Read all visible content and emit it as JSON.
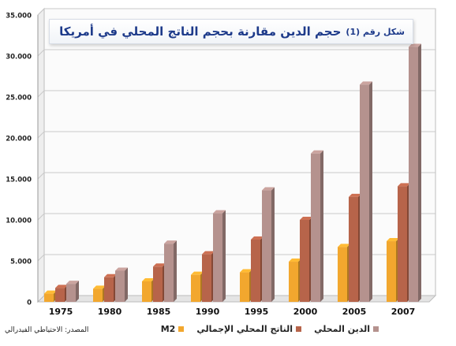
{
  "chart_data": {
    "type": "bar",
    "title_prefix": "شكل رقم (1)",
    "title": "حجم الدين مقارنة بحجم الناتج المحلي في أمريكا",
    "categories": [
      "1975",
      "1980",
      "1985",
      "1990",
      "1995",
      "2000",
      "2005",
      "2007"
    ],
    "series": [
      {
        "name": "M2",
        "color": "#f2a72e",
        "values": [
          1000,
          1600,
          2500,
          3300,
          3600,
          4900,
          6700,
          7400
        ]
      },
      {
        "name": "الناتج المحلي الإجمالي",
        "color": "#b7644a",
        "values": [
          1700,
          3000,
          4300,
          5800,
          7600,
          10000,
          12800,
          14100
        ]
      },
      {
        "name": "الدين المحلي",
        "color": "#b5928e",
        "values": [
          2200,
          3800,
          7100,
          10800,
          13600,
          18100,
          26500,
          31100
        ]
      }
    ],
    "ylim": [
      0,
      35000
    ],
    "yticks": [
      "0",
      "5.000",
      "10.000",
      "15.000",
      "20.000",
      "25.000",
      "30.000",
      "35.000"
    ],
    "grid": true,
    "legend_position": "bottom"
  },
  "source_note": "المصدر: الاحتياطي الفيدرالي"
}
